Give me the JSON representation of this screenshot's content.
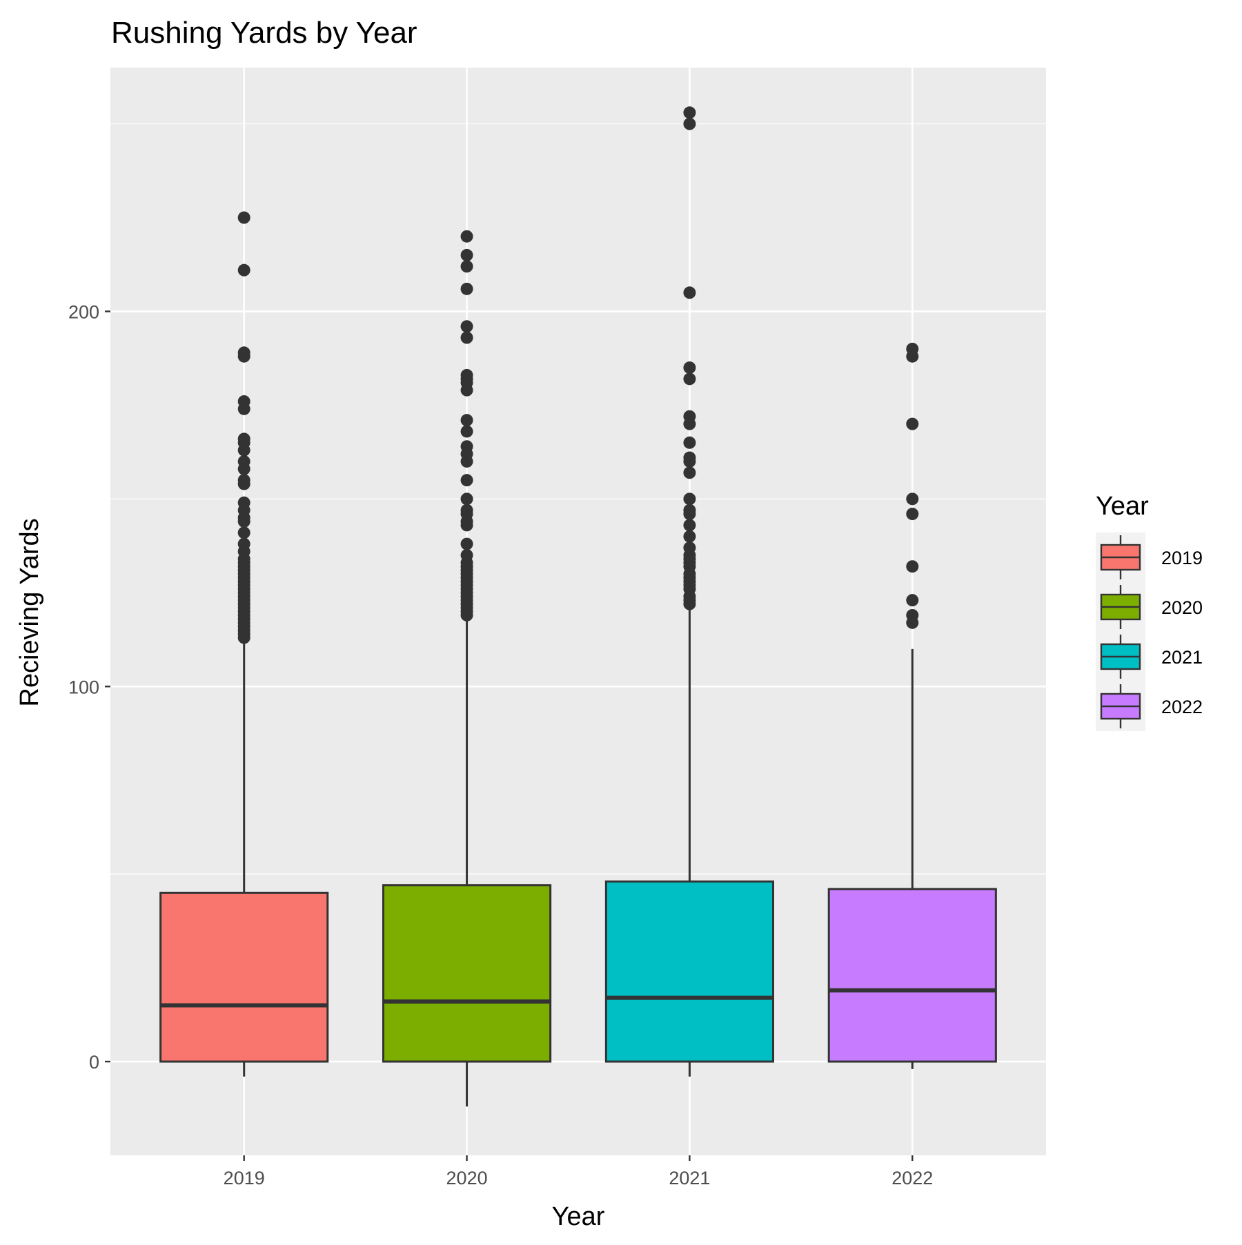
{
  "chart_data": {
    "type": "boxplot",
    "title": "Rushing Yards by Year",
    "xlabel": "Year",
    "ylabel": "Recieving Yards",
    "ylim": [
      -25,
      265
    ],
    "yticks": [
      0,
      100,
      200
    ],
    "grid": true,
    "legend_position": "right",
    "legend_title": "Year",
    "categories": [
      "2019",
      "2020",
      "2021",
      "2022"
    ],
    "series": [
      {
        "name": "2019",
        "color": "#F8766D",
        "whisker_low": -4,
        "q1": 0,
        "median": 15,
        "q3": 45,
        "whisker_high": 112,
        "outliers": [
          113,
          114,
          115,
          116,
          117,
          118,
          119,
          120,
          121,
          122,
          123,
          124,
          125,
          126,
          127,
          128,
          129,
          130,
          131,
          132,
          133,
          134,
          136,
          138,
          141,
          144,
          145,
          147,
          149,
          154,
          155,
          158,
          160,
          163,
          165,
          166,
          174,
          176,
          188,
          189,
          211,
          225
        ]
      },
      {
        "name": "2020",
        "color": "#7CAE00",
        "whisker_low": -12,
        "q1": 0,
        "median": 16,
        "q3": 47,
        "whisker_high": 118,
        "outliers": [
          119,
          120,
          121,
          122,
          123,
          124,
          125,
          126,
          127,
          128,
          129,
          130,
          131,
          132,
          133,
          135,
          138,
          143,
          144,
          146,
          147,
          150,
          155,
          160,
          162,
          164,
          168,
          171,
          179,
          181,
          182,
          183,
          193,
          196,
          206,
          212,
          215,
          220
        ]
      },
      {
        "name": "2021",
        "color": "#00BFC4",
        "whisker_low": -4,
        "q1": 0,
        "median": 17,
        "q3": 48,
        "whisker_high": 122,
        "outliers": [
          122,
          123,
          124,
          126,
          127,
          128,
          129,
          130,
          132,
          133,
          134,
          135,
          137,
          140,
          143,
          146,
          147,
          150,
          157,
          160,
          161,
          165,
          170,
          172,
          182,
          185,
          205,
          250,
          253
        ]
      },
      {
        "name": "2022",
        "color": "#C77CFF",
        "whisker_low": -2,
        "q1": 0,
        "median": 19,
        "q3": 46,
        "whisker_high": 110,
        "outliers": [
          117,
          119,
          123,
          132,
          146,
          150,
          170,
          188,
          190
        ]
      }
    ]
  }
}
